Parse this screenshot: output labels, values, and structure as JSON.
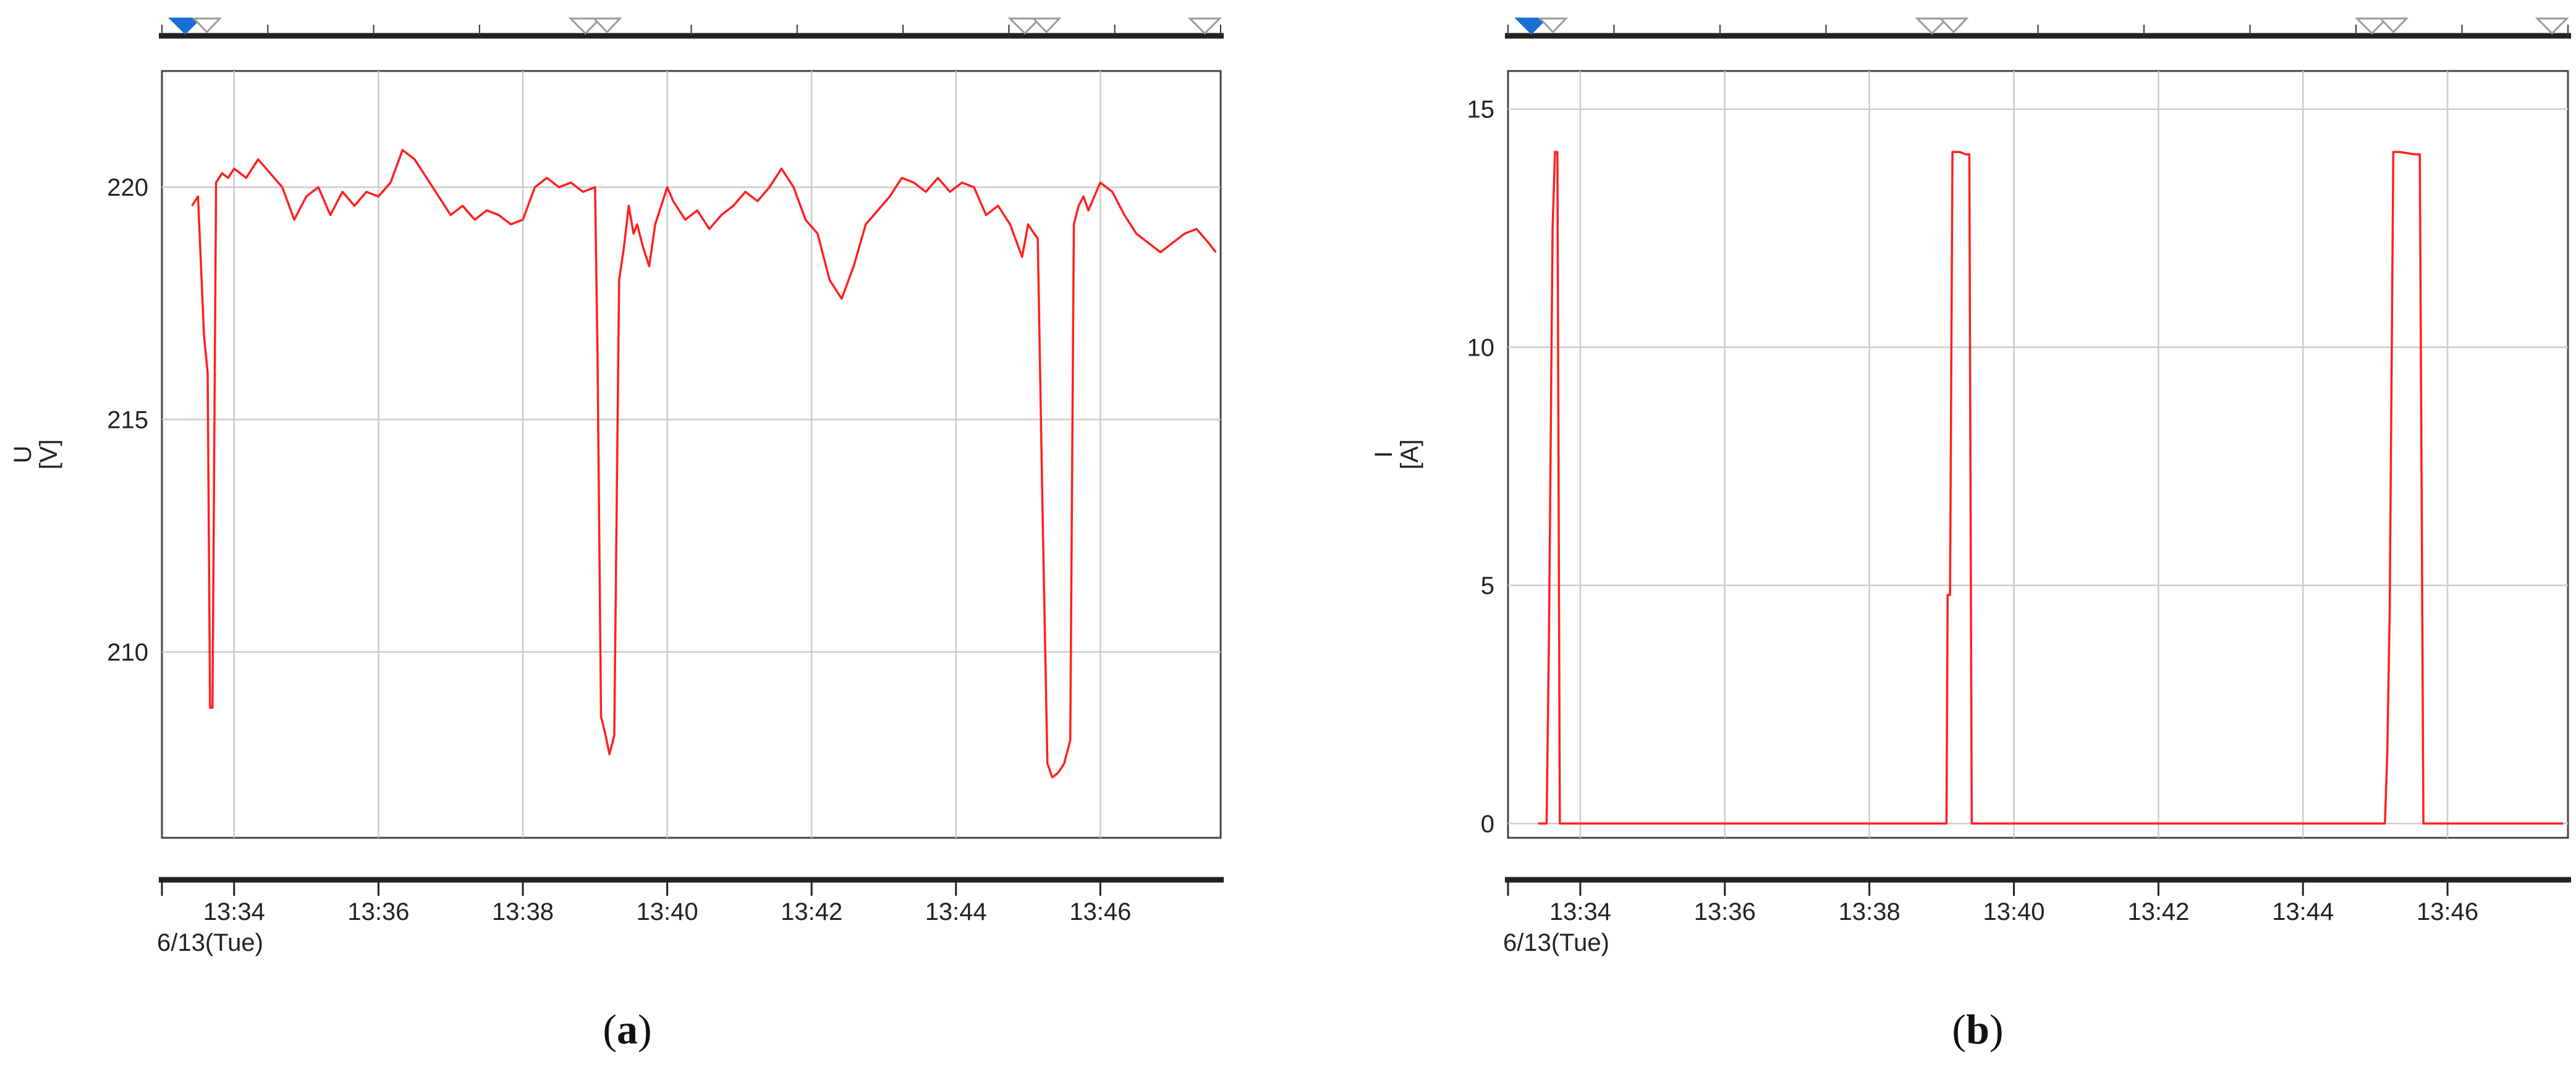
{
  "chart_data": [
    {
      "type": "line",
      "panel_label": "a",
      "ylabel_line1": "U",
      "ylabel_line2": "[V]",
      "date_label": "6/13(Tue)",
      "x_ticks": [
        "13:34",
        "13:36",
        "13:38",
        "13:40",
        "13:42",
        "13:44",
        "13:46"
      ],
      "y_ticks": [
        210,
        215,
        220
      ],
      "ylim": [
        206.0,
        222.5
      ],
      "xlim": [
        "13:33:00",
        "13:47:40"
      ],
      "grid": true,
      "series": [
        {
          "color": "#ff2020",
          "x": [
            "13:33:25",
            "13:33:30",
            "13:33:35",
            "13:33:38",
            "13:33:40",
            "13:33:42",
            "13:33:45",
            "13:33:50",
            "13:33:55",
            "13:34:00",
            "13:34:10",
            "13:34:20",
            "13:34:30",
            "13:34:40",
            "13:34:50",
            "13:35:00",
            "13:35:10",
            "13:35:20",
            "13:35:30",
            "13:35:40",
            "13:35:50",
            "13:36:00",
            "13:36:10",
            "13:36:20",
            "13:36:30",
            "13:36:40",
            "13:36:50",
            "13:37:00",
            "13:37:10",
            "13:37:20",
            "13:37:30",
            "13:37:40",
            "13:37:50",
            "13:38:00",
            "13:38:10",
            "13:38:20",
            "13:38:30",
            "13:38:40",
            "13:38:50",
            "13:39:00",
            "13:39:02",
            "13:39:05",
            "13:39:08",
            "13:39:12",
            "13:39:16",
            "13:39:20",
            "13:39:24",
            "13:39:28",
            "13:39:32",
            "13:39:35",
            "13:39:40",
            "13:39:45",
            "13:39:50",
            "13:40:00",
            "13:40:05",
            "13:40:15",
            "13:40:25",
            "13:40:35",
            "13:40:45",
            "13:40:55",
            "13:41:05",
            "13:41:15",
            "13:41:25",
            "13:41:35",
            "13:41:45",
            "13:41:55",
            "13:42:05",
            "13:42:15",
            "13:42:25",
            "13:42:35",
            "13:42:45",
            "13:42:55",
            "13:43:05",
            "13:43:15",
            "13:43:25",
            "13:43:35",
            "13:43:45",
            "13:43:55",
            "13:44:05",
            "13:44:15",
            "13:44:25",
            "13:44:35",
            "13:44:45",
            "13:44:55",
            "13:45:00",
            "13:45:05",
            "13:45:08",
            "13:45:12",
            "13:45:16",
            "13:45:20",
            "13:45:25",
            "13:45:30",
            "13:45:35",
            "13:45:38",
            "13:45:42",
            "13:45:46",
            "13:45:50",
            "13:46:00",
            "13:46:10",
            "13:46:20",
            "13:46:30",
            "13:46:40",
            "13:46:50",
            "13:47:00",
            "13:47:10",
            "13:47:20",
            "13:47:30",
            "13:47:36"
          ],
          "values": [
            219.6,
            219.8,
            216.8,
            216.0,
            208.8,
            208.8,
            220.1,
            220.3,
            220.2,
            220.4,
            220.2,
            220.6,
            220.3,
            220.0,
            219.3,
            219.8,
            220.0,
            219.4,
            219.9,
            219.6,
            219.9,
            219.8,
            220.1,
            220.8,
            220.6,
            220.2,
            219.8,
            219.4,
            219.6,
            219.3,
            219.5,
            219.4,
            219.2,
            219.3,
            220.0,
            220.2,
            220.0,
            220.1,
            219.9,
            220.0,
            216.5,
            208.6,
            208.3,
            207.8,
            208.2,
            218.0,
            218.7,
            219.6,
            219.0,
            219.2,
            218.7,
            218.3,
            219.2,
            220.0,
            219.7,
            219.3,
            219.5,
            219.1,
            219.4,
            219.6,
            219.9,
            219.7,
            220.0,
            220.4,
            220.0,
            219.3,
            219.0,
            218.0,
            217.6,
            218.3,
            219.2,
            219.5,
            219.8,
            220.2,
            220.1,
            219.9,
            220.2,
            219.9,
            220.1,
            220.0,
            219.4,
            219.6,
            219.2,
            218.5,
            219.2,
            219.0,
            218.9,
            213.0,
            207.6,
            207.3,
            207.4,
            207.6,
            208.1,
            219.2,
            219.6,
            219.8,
            219.5,
            220.1,
            219.9,
            219.4,
            219.0,
            218.8,
            218.6,
            218.8,
            219.0,
            219.1,
            218.8,
            218.6
          ]
        }
      ]
    },
    {
      "type": "line",
      "panel_label": "b",
      "ylabel_line1": "I",
      "ylabel_line2": "[A]",
      "date_label": "6/13(Tue)",
      "x_ticks": [
        "13:34",
        "13:36",
        "13:38",
        "13:40",
        "13:42",
        "13:44",
        "13:46"
      ],
      "y_ticks": [
        0,
        5,
        10,
        15
      ],
      "ylim": [
        -0.3,
        15.8
      ],
      "xlim": [
        "13:33:00",
        "13:47:40"
      ],
      "grid": true,
      "series": [
        {
          "color": "#ff2020",
          "x": [
            "13:33:25",
            "13:33:32",
            "13:33:34",
            "13:33:37",
            "13:33:39",
            "13:33:41",
            "13:33:43",
            "13:33:45",
            "13:39:04",
            "13:39:05",
            "13:39:07",
            "13:39:09",
            "13:39:15",
            "13:39:20",
            "13:39:23",
            "13:39:25",
            "13:45:08",
            "13:45:10",
            "13:45:12",
            "13:45:15",
            "13:45:20",
            "13:45:33",
            "13:45:37",
            "13:45:40",
            "13:47:36"
          ],
          "values": [
            0,
            0,
            4.0,
            12.5,
            14.1,
            14.1,
            0,
            0,
            0,
            4.8,
            4.8,
            14.1,
            14.1,
            14.05,
            14.05,
            0,
            0,
            1.5,
            4.5,
            14.1,
            14.1,
            14.05,
            14.05,
            0,
            0
          ]
        }
      ]
    }
  ]
}
